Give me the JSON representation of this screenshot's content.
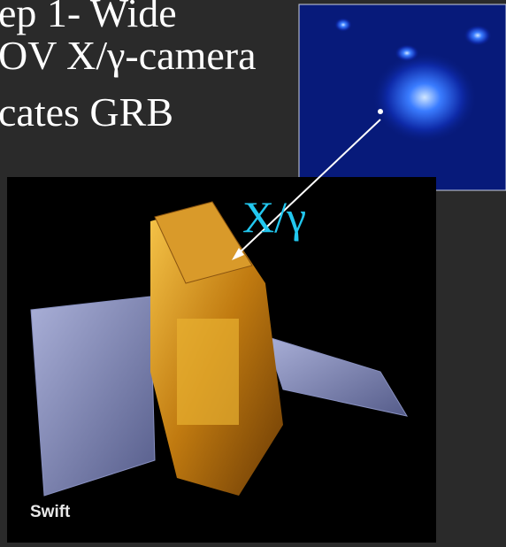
{
  "slide": {
    "lines": [
      "ep 1- Wide",
      "OV X/γ-camera",
      "cates GRB"
    ],
    "arrow_label": "X/γ",
    "photo_caption": "Swift"
  }
}
